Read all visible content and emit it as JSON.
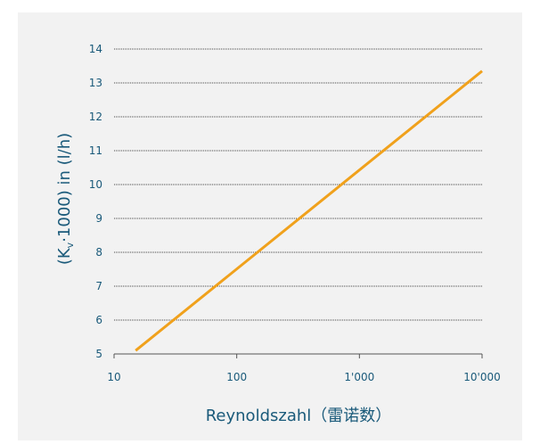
{
  "chart_data": {
    "type": "line",
    "xlabel": "Reynoldszahl（雷诺数）",
    "ylabel_main": "(K",
    "ylabel_sub": "v",
    "ylabel_rest": "·1000) in (l/h)",
    "x_scale": "log",
    "xlim": [
      10,
      10000
    ],
    "ylim": [
      5,
      14
    ],
    "x_ticks": [
      10,
      100,
      1000,
      10000
    ],
    "x_tick_labels": [
      "10",
      "100",
      "1'000",
      "10'000"
    ],
    "y_ticks": [
      5,
      6,
      7,
      8,
      9,
      10,
      11,
      12,
      13,
      14
    ],
    "y_tick_labels": [
      "5",
      "6",
      "7",
      "8",
      "9",
      "10",
      "11",
      "12",
      "13",
      "14"
    ],
    "grid": "horizontal",
    "series": [
      {
        "color": "#f0a11c",
        "x": [
          15,
          10000
        ],
        "y": [
          5.1,
          13.35
        ]
      }
    ],
    "colors": {
      "panel_background": "#f2f2f2",
      "text": "#1a5a7a",
      "grid": "#444444",
      "line": "#f0a11c"
    }
  }
}
